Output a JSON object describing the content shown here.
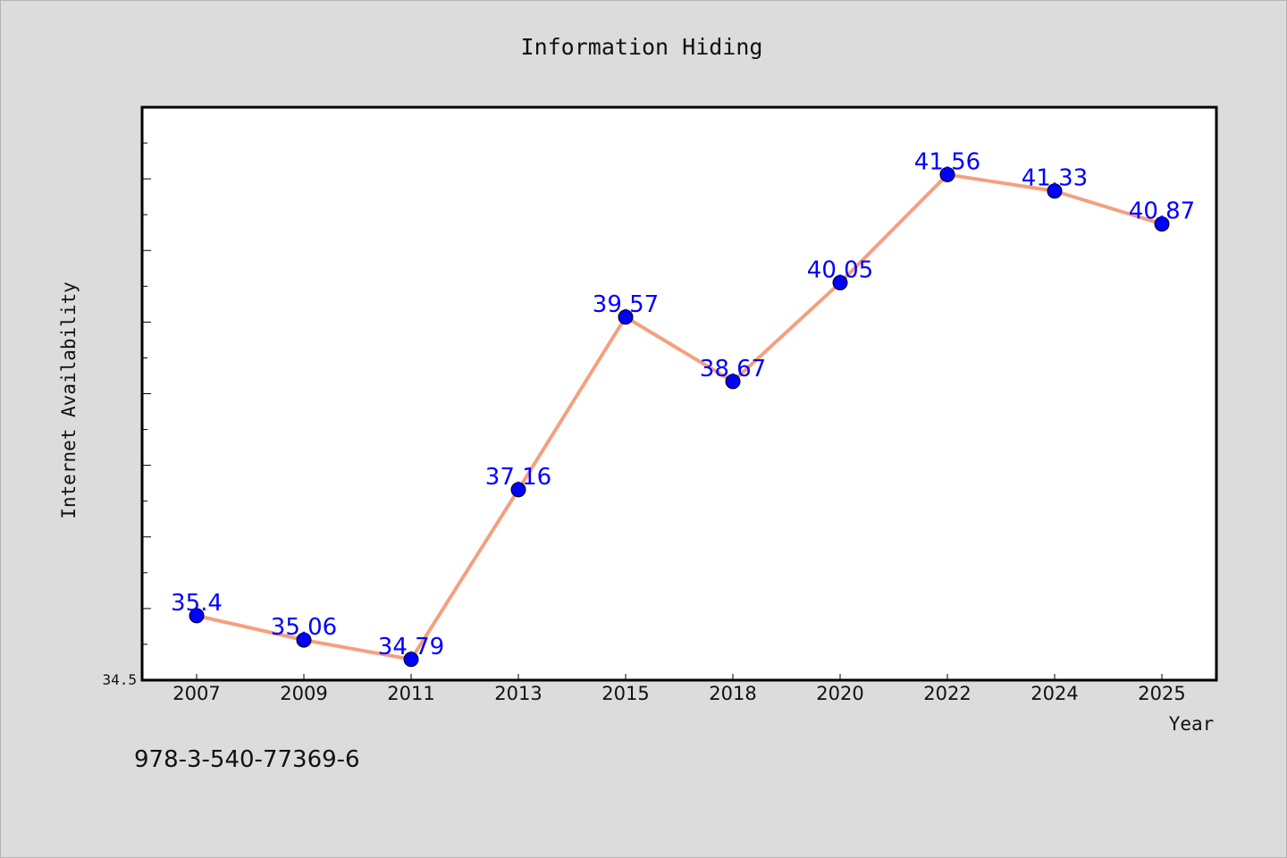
{
  "chart_data": {
    "type": "line",
    "title": "Information Hiding",
    "xlabel": "Year",
    "ylabel": "Internet Availability",
    "categories": [
      "2007",
      "2009",
      "2011",
      "2013",
      "2015",
      "2018",
      "2020",
      "2022",
      "2024",
      "2025"
    ],
    "series": [
      {
        "values": [
          35.4,
          35.06,
          34.79,
          37.16,
          39.57,
          38.67,
          40.05,
          41.56,
          41.33,
          40.87
        ],
        "labels": [
          "35.4",
          "35.06",
          "34.79",
          "37.16",
          "39.57",
          "38.67",
          "40.05",
          "41.56",
          "41.33",
          "40.87"
        ]
      }
    ],
    "ylim": [
      34.5,
      42.5
    ],
    "yticklabels": [
      "34.5"
    ],
    "grid": false,
    "colors": {
      "line": "#f4a07e",
      "marker": "#0000ff",
      "label": "#0000ff"
    }
  },
  "footer_note": "978-3-540-77369-6"
}
